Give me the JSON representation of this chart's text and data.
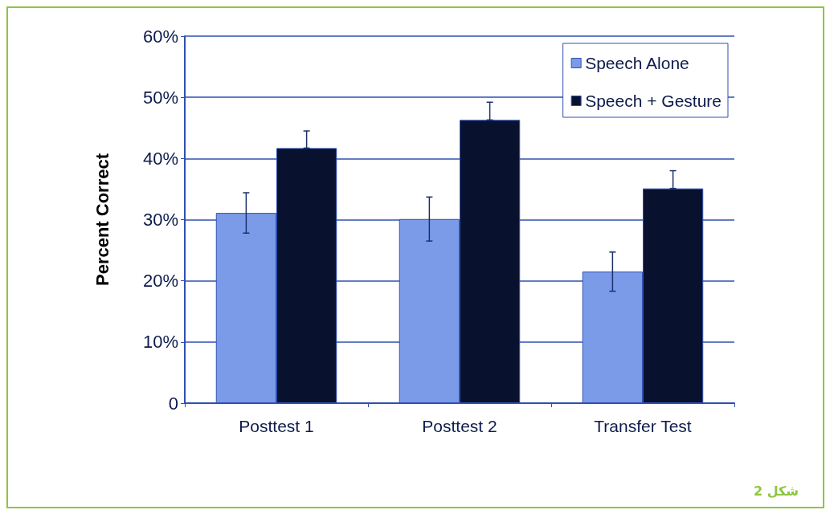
{
  "chart_data": {
    "type": "bar",
    "ylabel": "Percent Correct",
    "categories": [
      "Posttest 1",
      "Posttest 2",
      "Transfer Test"
    ],
    "series": [
      {
        "name": "Speech Alone",
        "color": "#7b9be9",
        "values": [
          31.1,
          30.1,
          21.5
        ],
        "errors": [
          3.3,
          3.6,
          3.2
        ]
      },
      {
        "name": "Speech + Gesture",
        "color": "#08112e",
        "values": [
          41.7,
          46.3,
          35.1
        ],
        "errors": [
          [
            41.7,
            44.5
          ],
          [
            46.3,
            49.2
          ],
          [
            35.1,
            38.0
          ]
        ]
      }
    ],
    "ylim": [
      0,
      60
    ],
    "yticks": [
      0,
      {
        "value": 10,
        "label": "10%"
      },
      {
        "value": 20,
        "label": "20%"
      },
      {
        "value": 30,
        "label": "30%"
      },
      {
        "value": 40,
        "label": "40%"
      },
      {
        "value": 50,
        "label": "50%"
      },
      {
        "value": 60,
        "label": "60%"
      }
    ],
    "grid": "y",
    "legend": "top right",
    "annotations": [
      "شكل 2"
    ]
  }
}
